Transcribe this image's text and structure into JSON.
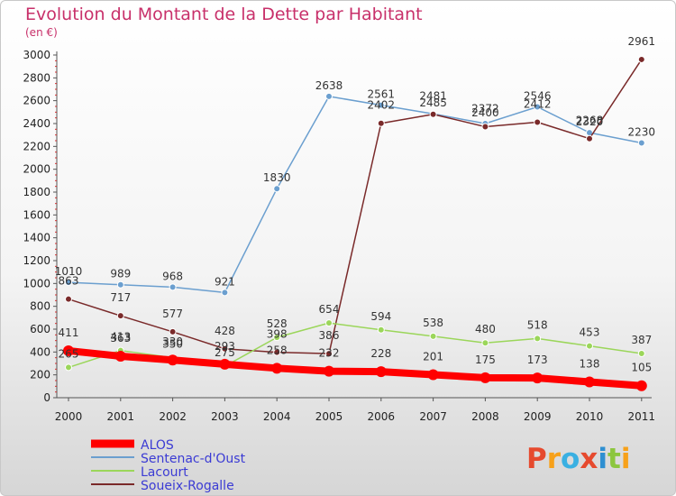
{
  "title": "Evolution du Montant de la Dette par Habitant",
  "unit_label": "(en €)",
  "logo": {
    "text": "Proxiti",
    "letter_colors": [
      "#e64a2e",
      "#f7a11a",
      "#3ab0e2",
      "#e64a2e",
      "#2e8fd1",
      "#8cc63e",
      "#f7a11a"
    ]
  },
  "chart_data": {
    "type": "line",
    "title": "Evolution du Montant de la Dette par Habitant",
    "ylabel": "(en €)",
    "xlabel": "",
    "categories": [
      "2000",
      "2001",
      "2002",
      "2003",
      "2004",
      "2005",
      "2006",
      "2007",
      "2008",
      "2009",
      "2010",
      "2011"
    ],
    "ylim": [
      0,
      3000
    ],
    "yticks": [
      0,
      200,
      400,
      600,
      800,
      1000,
      1200,
      1400,
      1600,
      1800,
      2000,
      2200,
      2400,
      2600,
      2800,
      3000
    ],
    "grid": false,
    "legend_position": "bottom-left",
    "series": [
      {
        "name": "ALOS",
        "color": "#ff0000",
        "values": [
          411,
          363,
          330,
          293,
          258,
          232,
          228,
          201,
          175,
          173,
          138,
          105
        ]
      },
      {
        "name": "Sentenac-d'Oust",
        "color": "#6b9fcf",
        "values": [
          1010,
          989,
          968,
          921,
          1830,
          2638,
          2561,
          2485,
          2400,
          2546,
          2320,
          2230
        ]
      },
      {
        "name": "Lacourt",
        "color": "#9bd65a",
        "values": [
          265,
          413,
          350,
          275,
          528,
          654,
          594,
          538,
          480,
          518,
          453,
          387
        ]
      },
      {
        "name": "Soueix-Rogalle",
        "color": "#7a2a2a",
        "values": [
          863,
          717,
          577,
          428,
          398,
          386,
          2402,
          2481,
          2372,
          2412,
          2268,
          2961
        ]
      }
    ],
    "data_labels": [
      {
        "series": 0,
        "texts": [
          "411",
          "363",
          "330",
          "293",
          "258",
          "232",
          "228",
          "201",
          "175",
          "173",
          "138",
          "105"
        ]
      },
      {
        "series": 1,
        "texts": [
          "1010",
          "989",
          "968",
          "921",
          "1830",
          "2638",
          "2561",
          "2485",
          "2400",
          "2546",
          "2320",
          "2230"
        ]
      },
      {
        "series": 2,
        "texts": [
          "265",
          "413",
          "350",
          "275",
          "528",
          "654",
          "594",
          "538",
          "480",
          "518",
          "453",
          "387"
        ]
      },
      {
        "series": 3,
        "texts": [
          "863",
          "717",
          "577",
          "428",
          "398",
          "386",
          "2402",
          "2481",
          "2372",
          "2412",
          "2268",
          "2961"
        ]
      }
    ]
  }
}
